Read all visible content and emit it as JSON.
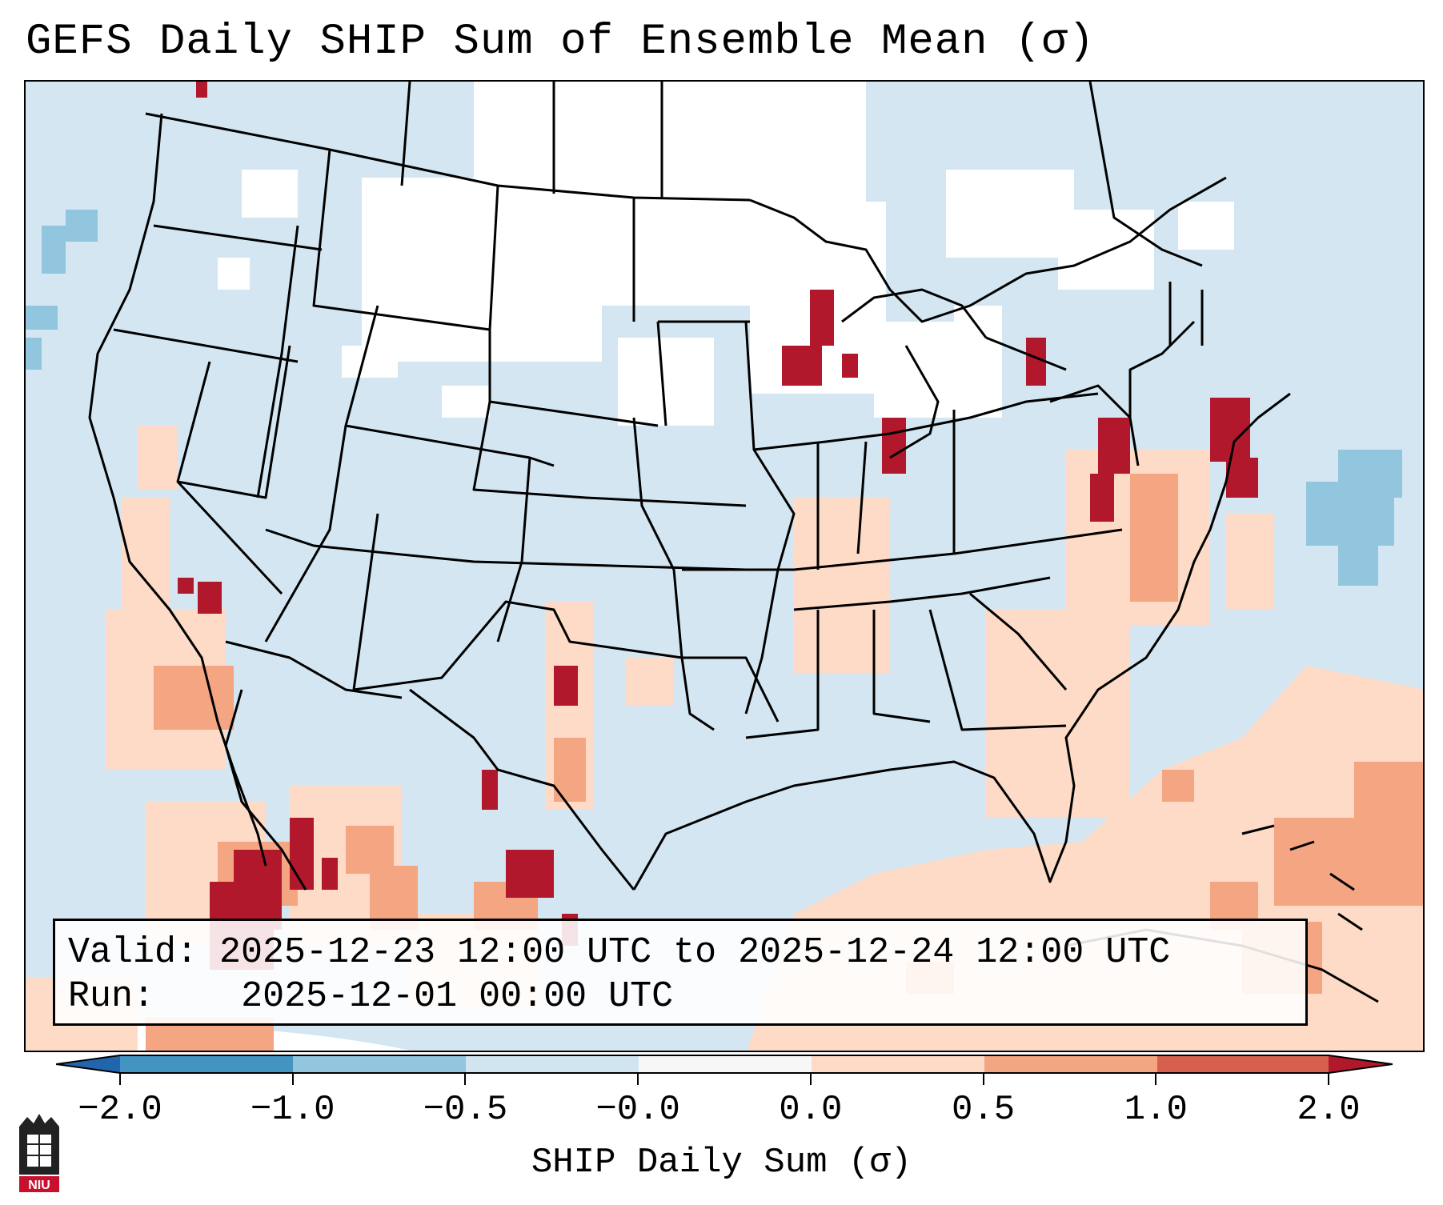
{
  "figure": {
    "title": "GEFS Daily SHIP Sum of Ensemble Mean (σ)",
    "valid_label": "Valid:",
    "valid_value": "2025-12-23 12:00 UTC to 2025-12-24 12:00 UTC",
    "run_label": "Run:",
    "run_value": "2025-12-01 00:00 UTC"
  },
  "colorbar": {
    "title": "SHIP Daily Sum (σ)",
    "tick_labels": [
      "−2.0",
      "−1.0",
      "−0.5",
      "−0.0",
      "0.0",
      "0.5",
      "1.0",
      "2.0"
    ],
    "colors": [
      "#4393c3",
      "#92c5de",
      "#d1e5f0",
      "#f7f7f7",
      "#fddbc7",
      "#f4a582",
      "#d6604d",
      "#b2182b"
    ],
    "extend": "both"
  },
  "map": {
    "projection": "Lambert conformal, CONUS",
    "fill_colors": {
      "near_zero_neg": "#d1e5f0",
      "near_zero": "#ffffff",
      "pos_low": "#fddbc7",
      "pos_mid": "#f4a582",
      "pos_high": "#b2182b",
      "neg_mid": "#92c5de"
    }
  },
  "logo": {
    "text": "NIU"
  }
}
